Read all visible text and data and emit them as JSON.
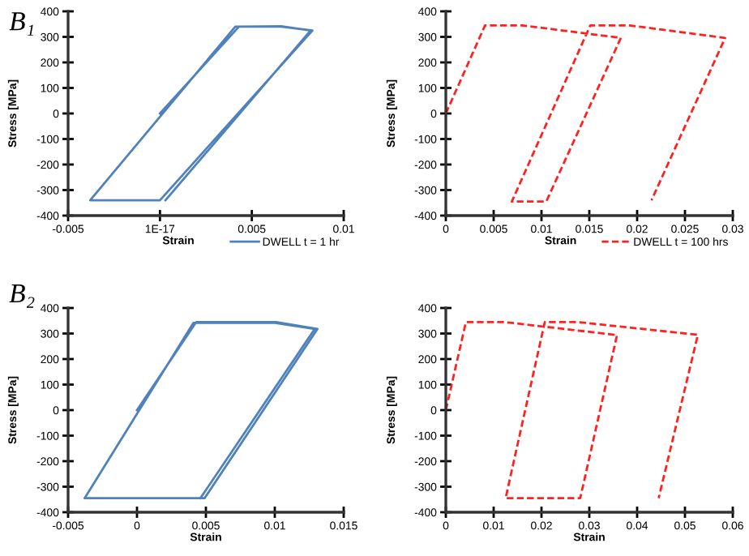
{
  "chart_data": [
    {
      "type": "line",
      "title": "B₁",
      "xlabel": "Strain",
      "ylabel": "Stress [MPa]",
      "legend": "bottom right",
      "xlim": [
        -0.005,
        0.01
      ],
      "xticks": [
        -0.005,
        {
          "value": 0,
          "label": "1E-17"
        },
        0.005,
        0.01
      ],
      "ylim": [
        -400,
        400
      ],
      "yticks": [
        -400,
        -300,
        -200,
        -100,
        0,
        100,
        200,
        300,
        400
      ],
      "series": [
        {
          "name": "DWELL t = 1 hr",
          "color": "#4f81bd",
          "line_style": "solid",
          "x": [
            0,
            0.0043,
            0.0066,
            0.0083,
            0,
            -0.0038,
            0.0041,
            0.0066,
            0.0082,
            0.0003
          ],
          "values": [
            0,
            340,
            340,
            325,
            -340,
            -340,
            340,
            342,
            325,
            -340
          ]
        }
      ]
    },
    {
      "type": "line",
      "xlabel": "Strain",
      "ylabel": "Stress [MPa]",
      "legend": "bottom right",
      "xlim": [
        0,
        0.03
      ],
      "xticks": [
        0,
        0.005,
        0.01,
        0.015,
        0.02,
        0.025,
        0.03
      ],
      "ylim": [
        -400,
        400
      ],
      "yticks": [
        -400,
        -300,
        -200,
        -100,
        0,
        100,
        200,
        300,
        400
      ],
      "series": [
        {
          "name": "DWELL t = 100 hrs",
          "color": "#ff2020",
          "line_style": "dashed",
          "x": [
            0,
            0.0041,
            0.008,
            0.0183,
            0.0105,
            0.0069,
            0.0151,
            0.0192,
            0.0292,
            0.0215
          ],
          "values": [
            0,
            345,
            345,
            296,
            -345,
            -345,
            345,
            345,
            296,
            -340
          ]
        }
      ]
    },
    {
      "type": "line",
      "title": "B₂",
      "xlabel": "Strain",
      "ylabel": "Stress [MPa]",
      "xlim": [
        -0.005,
        0.015
      ],
      "xticks": [
        -0.005,
        0,
        0.005,
        0.01,
        0.015
      ],
      "ylim": [
        -400,
        400
      ],
      "yticks": [
        -400,
        -300,
        -200,
        -100,
        0,
        100,
        200,
        300,
        400
      ],
      "series": [
        {
          "color": "#4f81bd",
          "line_style": "solid",
          "x": [
            0,
            0.0043,
            0.0101,
            0.0131,
            0.0049,
            -0.0038,
            0.0041,
            0.01,
            0.0129,
            0.0046
          ],
          "values": [
            0,
            345,
            345,
            318,
            -345,
            -345,
            342,
            342,
            318,
            -345
          ]
        }
      ]
    },
    {
      "type": "line",
      "xlabel": "Strain",
      "ylabel": "Stress [MPa]",
      "xlim": [
        0,
        0.06
      ],
      "xticks": [
        0,
        0.01,
        0.02,
        0.03,
        0.04,
        0.05,
        0.06
      ],
      "ylim": [
        -400,
        400
      ],
      "yticks": [
        -400,
        -300,
        -200,
        -100,
        0,
        100,
        200,
        300,
        400
      ],
      "series": [
        {
          "color": "#ff2020",
          "line_style": "dashed",
          "x": [
            0,
            0.0042,
            0.0122,
            0.0358,
            0.0281,
            0.0125,
            0.0207,
            0.0275,
            0.0527,
            0.0445
          ],
          "values": [
            0,
            345,
            345,
            294,
            -345,
            -345,
            345,
            345,
            295,
            -345
          ]
        }
      ]
    }
  ]
}
